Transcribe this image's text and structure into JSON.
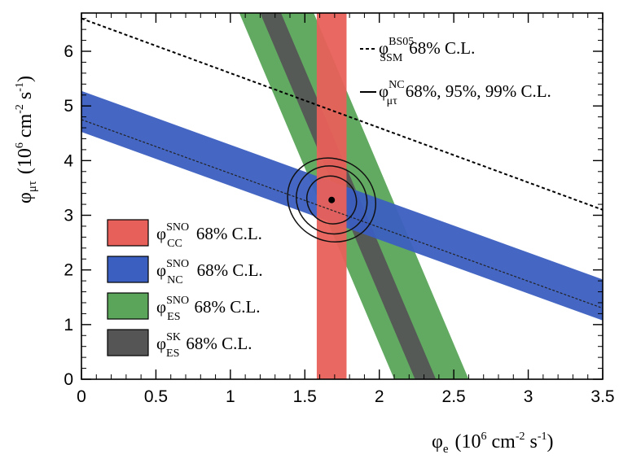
{
  "chart_data": {
    "type": "area",
    "x_axis": {
      "label_symbol": "φ",
      "label_subscript": "e",
      "label_units": "(10",
      "label_exp": "6",
      "label_units2": " cm",
      "label_exp2": "-2",
      "label_units3": " s",
      "label_exp3": "-1",
      "label_close": ")",
      "range": [
        0,
        3.5
      ],
      "ticks": [
        0,
        0.5,
        1,
        1.5,
        2,
        2.5,
        3,
        3.5
      ],
      "tick_labels": [
        "0",
        "0.5",
        "1",
        "1.5",
        "2",
        "2.5",
        "3",
        "3.5"
      ]
    },
    "y_axis": {
      "label_symbol": "φ",
      "label_subscript": "μτ",
      "label_units": "(10",
      "label_exp": "6",
      "label_units2": " cm",
      "label_exp2": "-2",
      "label_units3": " s",
      "label_exp3": "-1",
      "label_close": ")",
      "range": [
        0,
        6.7
      ],
      "ticks": [
        0,
        1,
        2,
        3,
        4,
        5,
        6
      ],
      "tick_labels": [
        "0",
        "1",
        "2",
        "3",
        "4",
        "5",
        "6"
      ]
    },
    "bands": [
      {
        "key": "cc",
        "sym": "φ",
        "sup": "SNO",
        "sub": "CC",
        "label": "68% C.L.",
        "color": "#e8605a",
        "x_min": 1.58,
        "x_max": 1.78
      },
      {
        "key": "nc",
        "sym": "φ",
        "sup": "SNO",
        "sub": "NC",
        "label": "68% C.L.",
        "color": "#3b5fc0",
        "center_intercept": 4.9,
        "width": 0.75
      },
      {
        "key": "es",
        "sym": "φ",
        "sup": "SNO",
        "sub": "ES",
        "label": "68% C.L.",
        "color": "#5aa55a",
        "x_at_y0_low": 2.1,
        "x_at_y0_high": 2.6,
        "x_at_top_low": 1.06,
        "x_at_top_high": 1.56
      },
      {
        "key": "sk",
        "sym": "φ",
        "sup": "SK",
        "sub": "ES",
        "label": "68% C.L.",
        "color": "#555555",
        "x_at_y0_low": 2.24,
        "x_at_y0_high": 2.38,
        "x_at_top_low": 1.2,
        "x_at_top_high": 1.34
      }
    ],
    "ssm_line": {
      "sym": "φ",
      "sup": "BS05",
      "sub": "SSM",
      "label": "68% C.L.",
      "y_at_0": 6.6,
      "y_at_35": 3.1
    },
    "nc_line": {
      "sym": "φ",
      "sup": "NC",
      "sub": "μτ",
      "label": "68%, 95%, 99% C.L.",
      "y_at_0": 4.75,
      "y_at_35": 1.3
    },
    "best_fit": {
      "x": 1.68,
      "y": 3.28
    },
    "contours": [
      {
        "level": "68%",
        "cx": 1.68,
        "cy": 3.28,
        "a": 0.14,
        "b": 1.02
      },
      {
        "level": "95%",
        "cx": 1.68,
        "cy": 3.28,
        "a": 0.2,
        "b": 1.45
      },
      {
        "level": "99%",
        "cx": 1.68,
        "cy": 3.28,
        "a": 0.25,
        "b": 1.78
      }
    ],
    "grid": false,
    "legend_position": "lower-left"
  }
}
